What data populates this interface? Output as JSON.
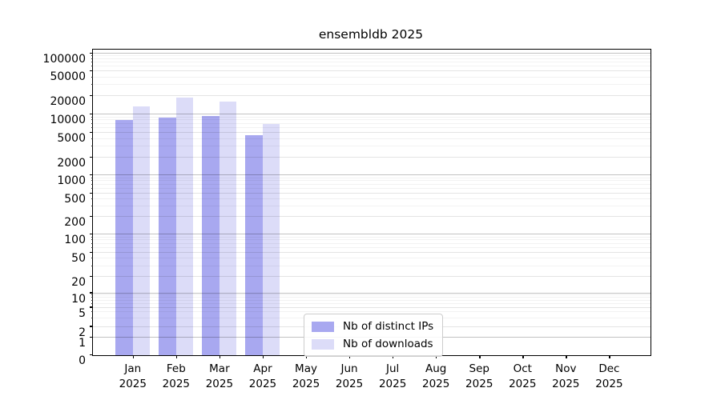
{
  "chart_data": {
    "type": "bar",
    "title": "ensembldb 2025",
    "yscale": "symlog",
    "grid": true,
    "legend_position": "lower center",
    "categories": [
      "Jan 2025",
      "Feb 2025",
      "Mar 2025",
      "Apr 2025",
      "May 2025",
      "Jun 2025",
      "Jul 2025",
      "Aug 2025",
      "Sep 2025",
      "Oct 2025",
      "Nov 2025",
      "Dec 2025"
    ],
    "series": [
      {
        "name": "Nb of distinct IPs",
        "color": "#a8a8f0",
        "values": [
          8200,
          9000,
          9400,
          4600,
          0,
          0,
          0,
          0,
          0,
          0,
          0,
          0
        ]
      },
      {
        "name": "Nb of downloads",
        "color": "#dcdcf8",
        "values": [
          13500,
          19000,
          16200,
          6900,
          0,
          0,
          0,
          0,
          0,
          0,
          0,
          0
        ]
      }
    ],
    "yticks": [
      0,
      1,
      2,
      5,
      10,
      20,
      50,
      100,
      200,
      500,
      1000,
      2000,
      5000,
      10000,
      20000,
      50000,
      100000
    ],
    "ylim": [
      0,
      100000
    ],
    "xlabel": "",
    "ylabel": ""
  }
}
